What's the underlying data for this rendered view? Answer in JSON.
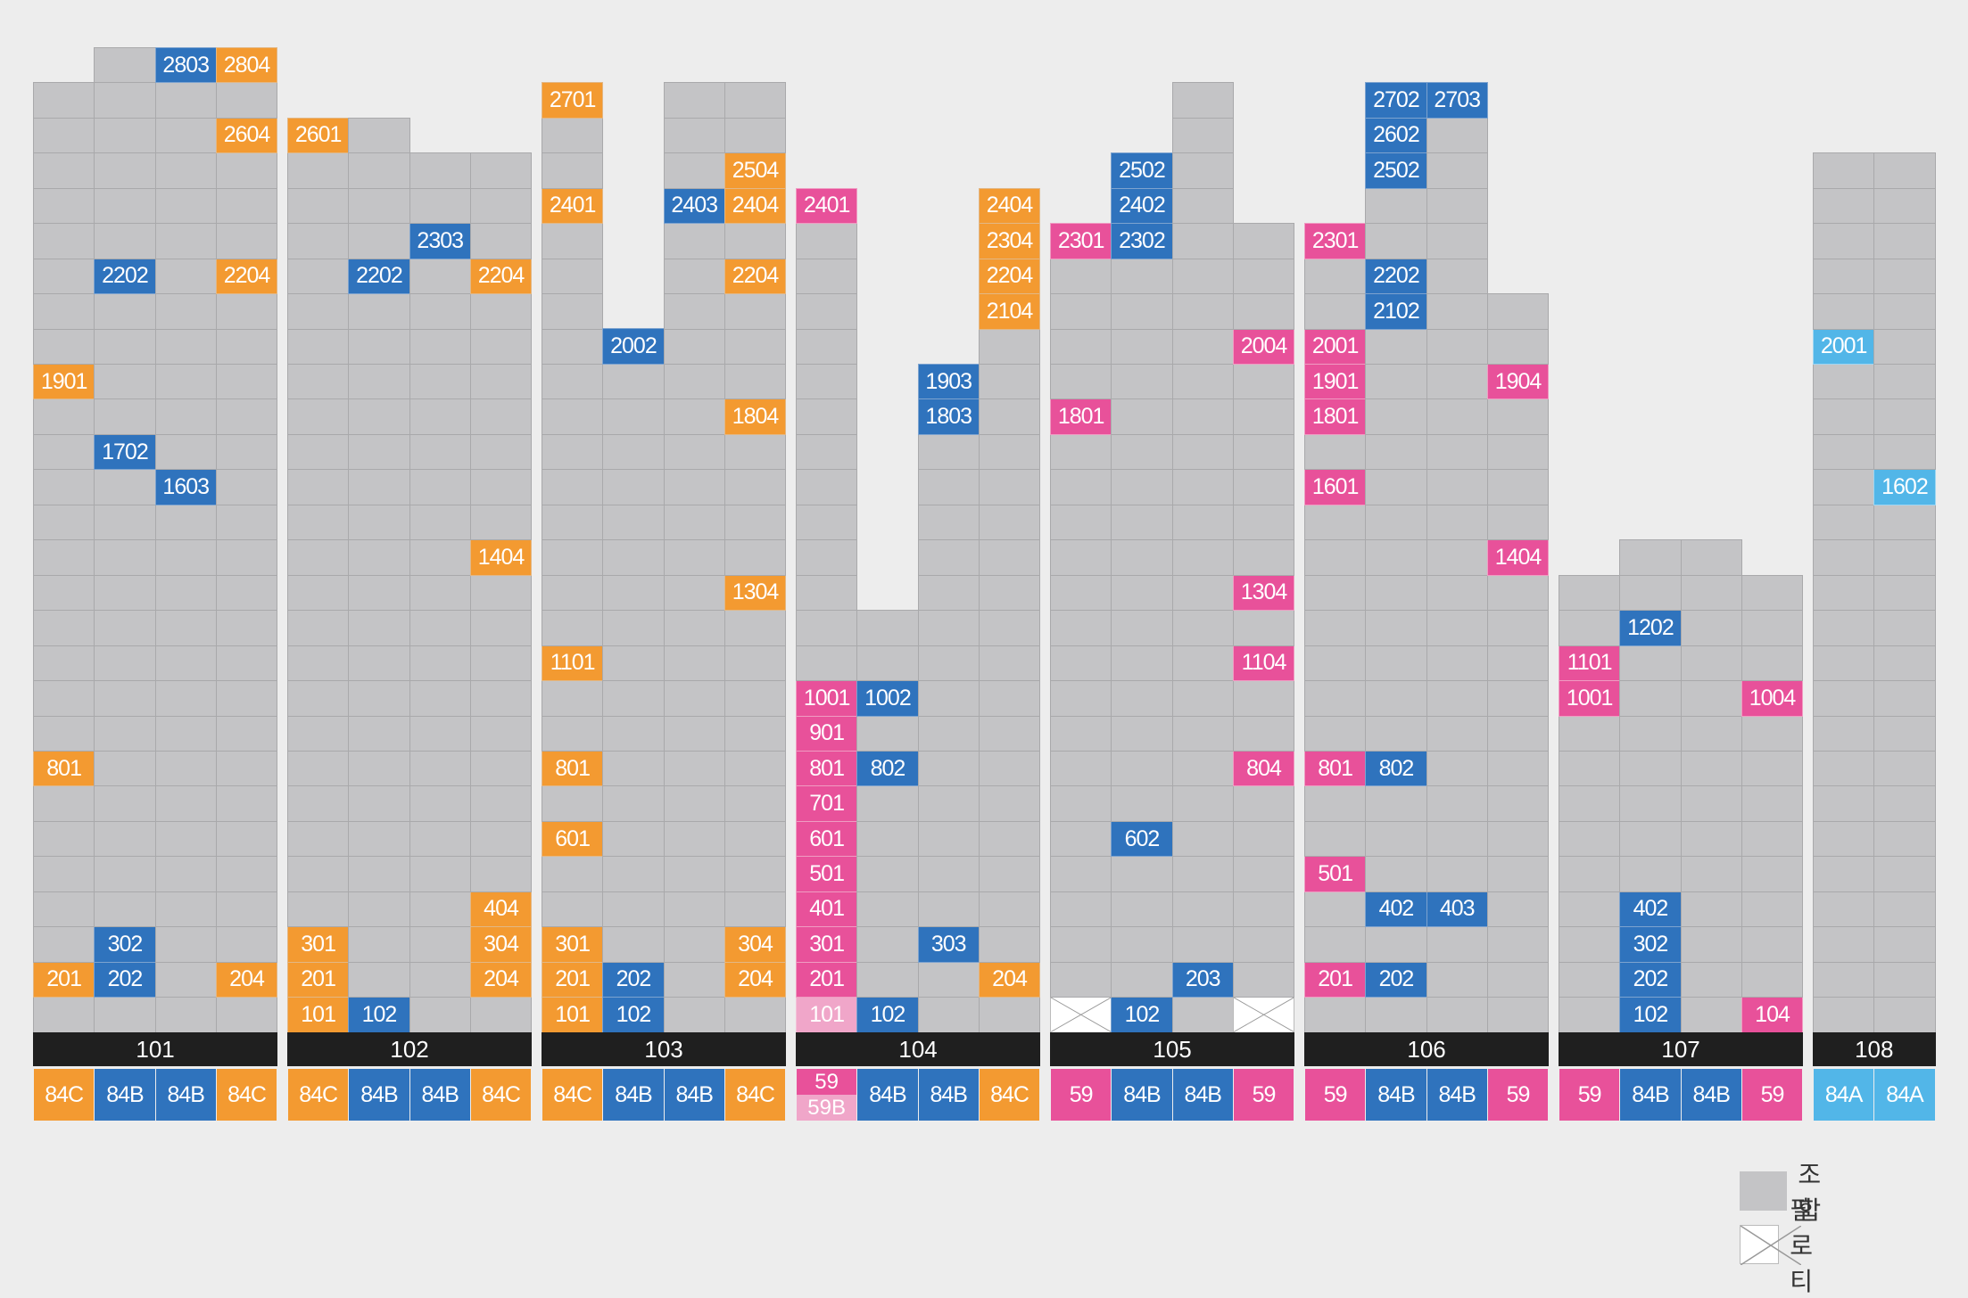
{
  "colors": {
    "gray": "#c4c4c6",
    "orange": "#f39a31",
    "blue": "#2f73bd",
    "pink": "#e8519a",
    "light_pink": "#f0a6c9",
    "sky": "#52b6e8",
    "label_bar": "#1f1f1f",
    "background": "#ededed"
  },
  "buildings": [
    {
      "name": "101",
      "columns": [
        {
          "top": 27,
          "types": [
            "84C"
          ],
          "units": {
            "19": "1901",
            "8": "801",
            "2": "201"
          },
          "unitColor": "orange"
        },
        {
          "top": 28,
          "types": [
            "84B"
          ],
          "units": {
            "22": "2202",
            "17": "1702",
            "3": "302",
            "2": "202"
          },
          "unitColor": "blue"
        },
        {
          "top": 28,
          "types": [
            "84B"
          ],
          "units": {
            "28": "2803",
            "16": "1603"
          },
          "unitColor": "blue"
        },
        {
          "top": 28,
          "types": [
            "84C"
          ],
          "units": {
            "28": "2804",
            "26": "2604",
            "22": "2204",
            "2": "204"
          },
          "unitColor": "orange"
        }
      ]
    },
    {
      "name": "102",
      "columns": [
        {
          "top": 26,
          "types": [
            "84C"
          ],
          "units": {
            "26": "2601",
            "3": "301",
            "2": "201",
            "1": "101"
          },
          "unitColor": "orange"
        },
        {
          "top": 26,
          "types": [
            "84B"
          ],
          "units": {
            "22": "2202",
            "1": "102"
          },
          "unitColor": "blue"
        },
        {
          "top": 25,
          "types": [
            "84B"
          ],
          "units": {
            "23": "2303"
          },
          "unitColor": "blue"
        },
        {
          "top": 25,
          "types": [
            "84C"
          ],
          "units": {
            "22": "2204",
            "14": "1404",
            "4": "404",
            "3": "304",
            "2": "204"
          },
          "unitColor": "orange"
        }
      ]
    },
    {
      "name": "103",
      "columns": [
        {
          "top": 27,
          "types": [
            "84C"
          ],
          "units": {
            "27": "2701",
            "24": "2401",
            "11": "1101",
            "8": "801",
            "6": "601",
            "3": "301",
            "2": "201",
            "1": "101"
          },
          "unitColor": "orange"
        },
        {
          "top": 20,
          "types": [
            "84B"
          ],
          "units": {
            "20": "2002",
            "2": "202",
            "1": "102"
          },
          "unitColor": "blue"
        },
        {
          "top": 27,
          "types": [
            "84B"
          ],
          "units": {
            "24": "2403"
          },
          "unitColor": "blue"
        },
        {
          "top": 27,
          "types": [
            "84C"
          ],
          "units": {
            "25": "2504",
            "24": "2404",
            "22": "2204",
            "18": "1804",
            "13": "1304",
            "3": "304",
            "2": "204"
          },
          "unitColor": "orange"
        }
      ]
    },
    {
      "name": "104",
      "columns": [
        {
          "top": 24,
          "types": [
            "59",
            "59B"
          ],
          "units": {
            "24": "2401",
            "10": "1001",
            "9": "901",
            "8": "801",
            "7": "701",
            "6": "601",
            "5": "501",
            "4": "401",
            "3": "301",
            "2": "201",
            "1": "101"
          },
          "unitColor": "pink",
          "lightFloor": 1
        },
        {
          "top": 12,
          "types": [
            "84B"
          ],
          "units": {
            "10": "1002",
            "8": "802",
            "1": "102"
          },
          "unitColor": "blue"
        },
        {
          "top": 19,
          "types": [
            "84B"
          ],
          "units": {
            "19": "1903",
            "18": "1803",
            "3": "303"
          },
          "unitColor": "blue"
        },
        {
          "top": 24,
          "types": [
            "84C"
          ],
          "units": {
            "24": "2404",
            "23": "2304",
            "22": "2204",
            "21": "2104",
            "2": "204"
          },
          "unitColor": "orange"
        }
      ]
    },
    {
      "name": "105",
      "columns": [
        {
          "top": 23,
          "types": [
            "59"
          ],
          "units": {
            "23": "2301",
            "18": "1801"
          },
          "unitColor": "pink",
          "pilotis": 1
        },
        {
          "top": 25,
          "types": [
            "84B"
          ],
          "units": {
            "25": "2502",
            "24": "2402",
            "23": "2302",
            "6": "602",
            "1": "102"
          },
          "unitColor": "blue"
        },
        {
          "top": 27,
          "types": [
            "84B"
          ],
          "units": {
            "2": "203"
          },
          "unitColor": "blue"
        },
        {
          "top": 23,
          "types": [
            "59"
          ],
          "units": {
            "20": "2004",
            "13": "1304",
            "11": "1104",
            "8": "804"
          },
          "unitColor": "pink",
          "pilotis": 1
        }
      ]
    },
    {
      "name": "106",
      "columns": [
        {
          "top": 23,
          "types": [
            "59"
          ],
          "units": {
            "23": "2301",
            "20": "2001",
            "19": "1901",
            "18": "1801",
            "16": "1601",
            "8": "801",
            "5": "501",
            "2": "201"
          },
          "unitColor": "pink"
        },
        {
          "top": 27,
          "types": [
            "84B"
          ],
          "units": {
            "27": "2702",
            "26": "2602",
            "25": "2502",
            "22": "2202",
            "21": "2102",
            "8": "802",
            "4": "402",
            "2": "202"
          },
          "unitColor": "blue"
        },
        {
          "top": 27,
          "types": [
            "84B"
          ],
          "units": {
            "27": "2703",
            "4": "403"
          },
          "unitColor": "blue"
        },
        {
          "top": 21,
          "types": [
            "59"
          ],
          "units": {
            "19": "1904",
            "14": "1404"
          },
          "unitColor": "pink"
        }
      ]
    },
    {
      "name": "107",
      "columns": [
        {
          "top": 13,
          "types": [
            "59"
          ],
          "units": {
            "11": "1101",
            "10": "1001"
          },
          "unitColor": "pink"
        },
        {
          "top": 14,
          "types": [
            "84B"
          ],
          "units": {
            "12": "1202",
            "4": "402",
            "3": "302",
            "2": "202",
            "1": "102"
          },
          "unitColor": "blue"
        },
        {
          "top": 14,
          "types": [
            "84B"
          ],
          "units": {},
          "unitColor": "blue"
        },
        {
          "top": 13,
          "types": [
            "59"
          ],
          "units": {
            "10": "1004",
            "1": "104"
          },
          "unitColor": "pink"
        }
      ]
    },
    {
      "name": "108",
      "columns": [
        {
          "top": 25,
          "types": [
            "84A"
          ],
          "units": {
            "20": "2001"
          },
          "unitColor": "sky"
        },
        {
          "top": 25,
          "types": [
            "84A"
          ],
          "units": {
            "16": "1602"
          },
          "unitColor": "sky"
        }
      ]
    }
  ],
  "legend": [
    {
      "label": "조합",
      "kind": "gray"
    },
    {
      "label": "필로티",
      "kind": "pilotis"
    }
  ]
}
